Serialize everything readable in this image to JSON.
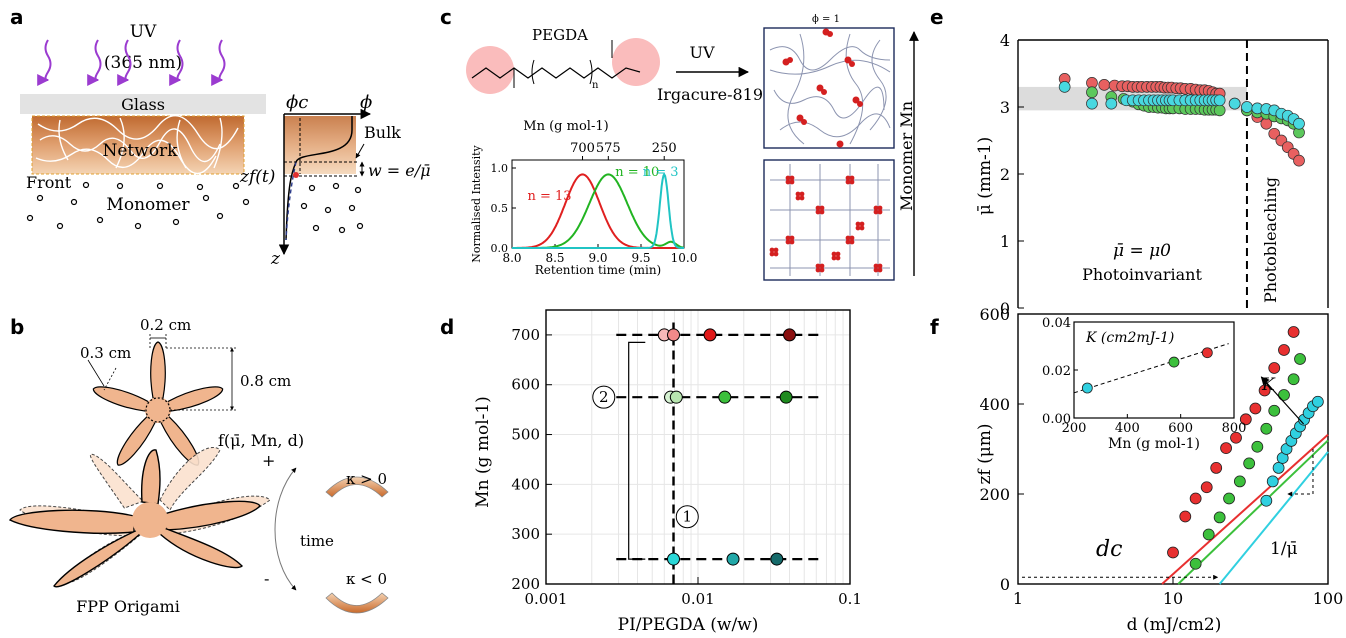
{
  "panel_labels": {
    "a": "a",
    "b": "b",
    "c": "c",
    "d": "d",
    "e": "e",
    "f": "f"
  },
  "panel_a": {
    "uv_label": "UV",
    "uv_wavelength": "(365 nm)",
    "glass_label": "Glass",
    "network_label": "Network",
    "front_label": "Front",
    "monomer_label": "Monomer",
    "phi_c_label": "ϕc",
    "phi_label": "ϕ",
    "bulk_label": "Bulk",
    "zf_label": "zf(t)",
    "w_label": "w = e/μ̄",
    "z_label": "z",
    "colors": {
      "network": "#d4884a",
      "uv_arrow": "#9b3bd0",
      "glass": "#e3e3e3"
    }
  },
  "panel_b": {
    "dim_width": "0.2 cm",
    "dim_petal": "0.3 cm",
    "dim_length": "0.8 cm",
    "function_label": "f(μ̄, Mn, d)",
    "plus_sign": "+",
    "minus_sign": "-",
    "time_label": "time",
    "kappa_pos": "κ > 0",
    "kappa_neg": "κ < 0",
    "caption": "FPP Origami",
    "colors": {
      "petal": "#f0b58e",
      "strip": "#c96a2b"
    }
  },
  "panel_c": {
    "molecule": "PEGDA",
    "subscript_n": "n",
    "reaction_over": "UV",
    "reaction_under": "Irgacure-819",
    "phi_top": "ϕ = 1",
    "axis_label": "Monomer Mn",
    "chart_data": {
      "type": "line",
      "xlabel": "Retention time (min)",
      "ylabel": "Normalised Intensity",
      "top_axis_label": "Mn (g mol-1)",
      "top_ticks": [
        "700",
        "575",
        "250"
      ],
      "xlim": [
        8.0,
        10.0
      ],
      "ylim": [
        0.0,
        1.1
      ],
      "xticks": [
        "8.0",
        "8.5",
        "9.0",
        "9.5",
        "10.0"
      ],
      "yticks": [
        "0.0",
        "0.5",
        "1.0"
      ],
      "series": [
        {
          "name": "n = 13",
          "color": "#e02020",
          "peak": 8.82,
          "width": 0.2
        },
        {
          "name": "n = 10",
          "color": "#22b422",
          "peak": 9.12,
          "width": 0.22
        },
        {
          "name": "n = 3",
          "color": "#20c4c4",
          "peak": 9.77,
          "width": 0.05
        }
      ]
    }
  },
  "panel_d": {
    "chart_data": {
      "type": "scatter",
      "xlabel": "PI/PEGDA (w/w)",
      "ylabel": "Mn (g mol-1)",
      "x_scale": "log",
      "xlim": [
        0.001,
        0.1
      ],
      "ylim": [
        200,
        750
      ],
      "xticks": [
        "0.001",
        "0.01",
        "0.1"
      ],
      "yticks": [
        "200",
        "300",
        "400",
        "500",
        "600",
        "700"
      ],
      "bracket_labels": [
        "1",
        "2"
      ],
      "series": [
        {
          "Mn": 700,
          "points": [
            {
              "x": 0.006,
              "color": "#f6b8b8"
            },
            {
              "x": 0.0069,
              "color": "#f28a8a"
            },
            {
              "x": 0.012,
              "color": "#e01818"
            },
            {
              "x": 0.04,
              "color": "#8a1010"
            }
          ]
        },
        {
          "Mn": 575,
          "points": [
            {
              "x": 0.0066,
              "color": "#d6f2d2"
            },
            {
              "x": 0.0072,
              "color": "#b8e6b0"
            },
            {
              "x": 0.015,
              "color": "#3cc03c"
            },
            {
              "x": 0.038,
              "color": "#1e8a1e"
            }
          ]
        },
        {
          "Mn": 250,
          "points": [
            {
              "x": 0.0069,
              "color": "#2ad8d8"
            },
            {
              "x": 0.017,
              "color": "#22a8a8"
            },
            {
              "x": 0.033,
              "color": "#156a6a"
            }
          ]
        }
      ]
    }
  },
  "panel_e": {
    "region_left": "Photoinvariant",
    "region_eq": "μ̄ = μ0",
    "region_right": "Photobleaching",
    "chart_data": {
      "type": "scatter",
      "ylabel": "μ̄ (mm-1)",
      "x_scale": "log",
      "xlim": [
        1,
        100
      ],
      "ylim": [
        0,
        4
      ],
      "yticks": [
        "0",
        "1",
        "2",
        "3",
        "4"
      ],
      "threshold_x": 30,
      "band": [
        2.95,
        3.3
      ],
      "series": [
        {
          "name": "red",
          "color": "#e86060",
          "x": [
            2,
            3,
            3.6,
            4.2,
            4.7,
            5.1,
            5.5,
            5.9,
            6.3,
            6.8,
            7.3,
            7.8,
            8.3,
            8.8,
            9.3,
            9.8,
            10.5,
            11.2,
            12,
            13,
            14,
            15,
            16,
            17,
            18,
            19,
            20,
            25,
            30,
            35,
            40,
            45,
            50,
            55,
            60,
            65
          ],
          "y": [
            3.42,
            3.36,
            3.33,
            3.32,
            3.31,
            3.31,
            3.3,
            3.3,
            3.3,
            3.3,
            3.3,
            3.3,
            3.3,
            3.29,
            3.29,
            3.29,
            3.28,
            3.28,
            3.27,
            3.27,
            3.26,
            3.25,
            3.25,
            3.24,
            3.22,
            3.2,
            3.2,
            3.05,
            2.95,
            2.85,
            2.75,
            2.6,
            2.5,
            2.4,
            2.3,
            2.2
          ]
        },
        {
          "name": "green",
          "color": "#5cc85c",
          "x": [
            3,
            4,
            4.8,
            5.5,
            6,
            6.5,
            7,
            7.5,
            8,
            8.5,
            9,
            9.5,
            10,
            11,
            12,
            13,
            14,
            15,
            16,
            17,
            18,
            19,
            20,
            30,
            35,
            40,
            45,
            50,
            55,
            60,
            65
          ],
          "y": [
            3.22,
            3.15,
            3.12,
            3.08,
            3.04,
            3.02,
            3.0,
            3.0,
            2.99,
            2.99,
            2.98,
            2.98,
            2.98,
            2.98,
            2.97,
            2.97,
            2.97,
            2.97,
            2.96,
            2.96,
            2.96,
            2.96,
            2.95,
            2.95,
            2.92,
            2.9,
            2.86,
            2.83,
            2.8,
            2.75,
            2.62
          ]
        },
        {
          "name": "cyan",
          "color": "#48d8e0",
          "x": [
            2,
            3,
            4,
            5,
            5.5,
            6,
            6.5,
            7,
            7.5,
            8,
            8.5,
            9,
            9.5,
            10,
            11,
            12,
            13,
            14,
            15,
            16,
            17,
            18,
            19,
            20,
            25,
            30,
            35,
            40,
            45,
            50,
            55,
            60,
            65
          ],
          "y": [
            3.3,
            3.05,
            3.05,
            3.1,
            3.1,
            3.1,
            3.1,
            3.1,
            3.1,
            3.1,
            3.1,
            3.1,
            3.1,
            3.1,
            3.1,
            3.1,
            3.1,
            3.1,
            3.1,
            3.1,
            3.1,
            3.1,
            3.1,
            3.1,
            3.05,
            3.0,
            2.98,
            2.97,
            2.95,
            2.9,
            2.87,
            2.82,
            2.75
          ]
        }
      ]
    }
  },
  "panel_f": {
    "dc_label": "dc",
    "K_label": "K",
    "inv_mu_label": "1/μ̄",
    "chart_data": {
      "type": "scatter",
      "xlabel": "d (mJ/cm2)",
      "ylabel": "zf (μm)",
      "x_scale": "log",
      "xlim": [
        1,
        100
      ],
      "ylim": [
        0,
        600
      ],
      "xticks": [
        "1",
        "10",
        "100"
      ],
      "yticks": [
        "0",
        "200",
        "400",
        "600"
      ],
      "series": [
        {
          "name": "red",
          "color": "#e83030",
          "dc": 8.5,
          "slope": 310,
          "x": [
            10,
            12,
            14,
            16.5,
            19,
            22,
            25.5,
            29.5,
            34,
            39,
            45,
            52,
            60
          ],
          "y": [
            70,
            150,
            190,
            215,
            258,
            302,
            325,
            366,
            390,
            430,
            480,
            520,
            560
          ]
        },
        {
          "name": "green",
          "color": "#3cc03c",
          "dc": 10.8,
          "slope": 330,
          "x": [
            14,
            17,
            20,
            23,
            27,
            31,
            35,
            40,
            45,
            52,
            60,
            66
          ],
          "y": [
            45,
            110,
            148,
            190,
            228,
            268,
            305,
            345,
            385,
            420,
            455,
            500
          ]
        },
        {
          "name": "cyan",
          "color": "#30d0e0",
          "dc": 20,
          "slope": 420,
          "x": [
            40,
            44,
            48,
            51,
            54,
            58,
            62,
            66,
            70,
            75,
            80,
            86
          ],
          "y": [
            185,
            228,
            258,
            280,
            300,
            318,
            335,
            350,
            365,
            380,
            395,
            405
          ]
        }
      ],
      "inset": {
        "title": "K (cm2mJ-1)",
        "xlabel": "Mn (g mol-1)",
        "xlim": [
          200,
          800
        ],
        "ylim": [
          0.0,
          0.04
        ],
        "xticks": [
          "200",
          "400",
          "600",
          "800"
        ],
        "yticks": [
          "0.00",
          "0.02",
          "0.04"
        ],
        "points": [
          {
            "x": 250,
            "y": 0.0125,
            "color": "#30d0e0"
          },
          {
            "x": 575,
            "y": 0.0233,
            "color": "#3cc03c"
          },
          {
            "x": 700,
            "y": 0.0272,
            "color": "#e83030"
          }
        ]
      }
    }
  }
}
